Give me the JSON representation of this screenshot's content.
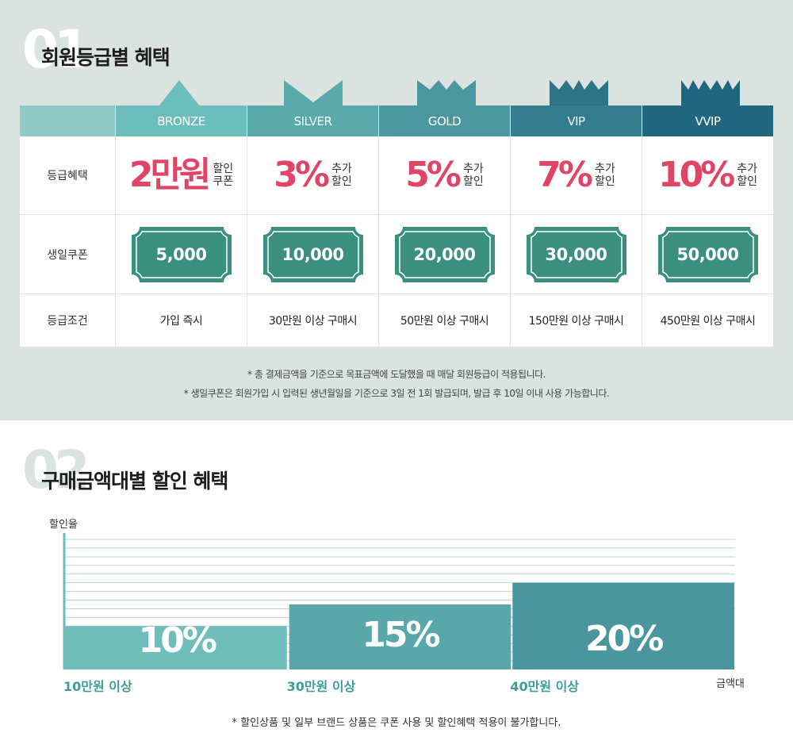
{
  "section1": {
    "number": "01",
    "title": "회원등급별 혜택",
    "tiers": [
      {
        "name": "BRONZE",
        "color": "#6bbebc",
        "crown_color": "#6bbebc",
        "benefit_value": "2만원",
        "benefit_sub_1": "할인",
        "benefit_sub_2": "쿠폰",
        "coupon": "5,000",
        "condition": "가입 즉시"
      },
      {
        "name": "SILVER",
        "color": "#5aa9ab",
        "crown_color": "#5aa9ab",
        "benefit_value": "3%",
        "benefit_sub_1": "추가",
        "benefit_sub_2": "할인",
        "coupon": "10,000",
        "condition": "30만원 이상 구매시"
      },
      {
        "name": "GOLD",
        "color": "#4a97a0",
        "crown_color": "#4a97a0",
        "benefit_value": "5%",
        "benefit_sub_1": "추가",
        "benefit_sub_2": "할인",
        "coupon": "20,000",
        "condition": "50만원 이상 구매시"
      },
      {
        "name": "VIP",
        "color": "#347d8e",
        "crown_color": "#2e7487",
        "benefit_value": "7%",
        "benefit_sub_1": "추가",
        "benefit_sub_2": "할인",
        "coupon": "30,000",
        "condition": "150만원 이상 구매시"
      },
      {
        "name": "VVIP",
        "color": "#226780",
        "crown_color": "#226780",
        "benefit_value": "10%",
        "benefit_sub_1": "추가",
        "benefit_sub_2": "할인",
        "coupon": "50,000",
        "condition": "450만원 이상 구매시"
      }
    ],
    "row_labels": {
      "benefit": "등급혜택",
      "coupon": "생일쿠폰",
      "condition": "등급조건"
    },
    "notes": [
      "* 총 결제금액을 기준으로 목표금액에 도달했을 때 매달 회원등급이 적용됩니다.",
      "* 생일쿠폰은 회원가입 시 입력된 생년월일을 기준으로 3일 전 1회 발급되며, 발급 후 10일 이내 사용 가능합니다."
    ],
    "colors": {
      "benefit_text": "#e04566",
      "coupon_fill": "#3a8f7e",
      "header_blank": "#8fcac8"
    }
  },
  "section2": {
    "number": "02",
    "title": "구매금액대별 할인 혜택",
    "footnote": "*  할인상품 및 일부 브랜드 상품은 쿠폰 사용 및 할인혜택 적용이 불가합니다."
  },
  "chart_data": {
    "type": "bar",
    "ylabel": "할인율",
    "xlabel": "금액대",
    "categories": [
      "10만원 이상",
      "30만원 이상",
      "40만원 이상"
    ],
    "values": [
      10,
      15,
      20
    ],
    "value_labels": [
      "10%",
      "15%",
      "20%"
    ],
    "ylim": [
      0,
      30
    ],
    "grid": true,
    "colors": [
      "#6fbdbb",
      "#58a7aa",
      "#4a969f"
    ]
  }
}
